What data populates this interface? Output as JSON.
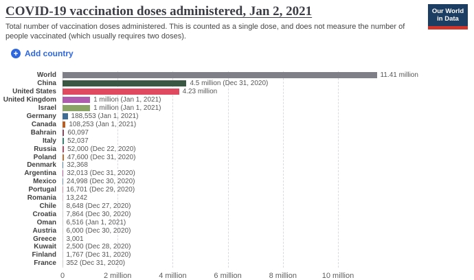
{
  "header": {
    "title": "COVID-19 vaccination doses administered, Jan 2, 2021",
    "subtitle": "Total number of vaccination doses administered. This is counted as a single dose, and does not measure the number of people vaccinated (which usually requires two doses).",
    "logo": {
      "line1": "Our World",
      "line2": "in Data",
      "bg_color": "#1d3e63",
      "accent_color": "#cf352b"
    }
  },
  "controls": {
    "add_country_label": "Add country",
    "accent_color": "#2d66dd"
  },
  "chart_data": {
    "type": "bar",
    "orientation": "horizontal",
    "title": "COVID-19 vaccination doses administered, Jan 2, 2021",
    "xlabel": "",
    "ylabel": "",
    "xlim": [
      0,
      12000000
    ],
    "grid": "dashed-vertical",
    "x_ticks": [
      {
        "label": "0",
        "value": 0
      },
      {
        "label": "2 million",
        "value": 2000000
      },
      {
        "label": "4 million",
        "value": 4000000
      },
      {
        "label": "6 million",
        "value": 6000000
      },
      {
        "label": "8 million",
        "value": 8000000
      },
      {
        "label": "10 million",
        "value": 10000000
      }
    ],
    "bars": [
      {
        "country": "World",
        "value": 11410000,
        "label": "11.41 million",
        "color": "#7f7f87"
      },
      {
        "country": "China",
        "value": 4500000,
        "label": "4.5 million (Dec 31, 2020)",
        "color": "#3a5743"
      },
      {
        "country": "United States",
        "value": 4230000,
        "label": "4.23 million",
        "color": "#df4a60"
      },
      {
        "country": "United Kingdom",
        "value": 1000000,
        "label": "1 million (Jan 1, 2021)",
        "color": "#ae5cae"
      },
      {
        "country": "Israel",
        "value": 1000000,
        "label": "1 million (Jan 1, 2021)",
        "color": "#89a465"
      },
      {
        "country": "Germany",
        "value": 188553,
        "label": "188,553 (Jan 1, 2021)",
        "color": "#3e6c95"
      },
      {
        "country": "Canada",
        "value": 108253,
        "label": "108,253 (Jan 1, 2021)",
        "color": "#bf5b1d"
      },
      {
        "country": "Bahrain",
        "value": 60097,
        "label": "60,097",
        "color": "#91425a"
      },
      {
        "country": "Italy",
        "value": 52037,
        "label": "52,037",
        "color": "#2d8571"
      },
      {
        "country": "Russia",
        "value": 52000,
        "label": "52,000 (Dec 22, 2020)",
        "color": "#bb4862"
      },
      {
        "country": "Poland",
        "value": 47600,
        "label": "47,600 (Dec 31, 2020)",
        "color": "#bf6b2d"
      },
      {
        "country": "Denmark",
        "value": 32368,
        "label": "32,368",
        "color": "#4e7fae"
      },
      {
        "country": "Argentina",
        "value": 32013,
        "label": "32,013 (Dec 31, 2020)",
        "color": "#c3529c"
      },
      {
        "country": "Mexico",
        "value": 24998,
        "label": "24,998 (Dec 30, 2020)",
        "color": "#6b8cb8"
      },
      {
        "country": "Portugal",
        "value": 16701,
        "label": "16,701 (Dec 29, 2020)",
        "color": "#d98a9f"
      },
      {
        "country": "Romania",
        "value": 13242,
        "label": "13,242",
        "color": "#dcb6c0"
      },
      {
        "country": "Chile",
        "value": 8648,
        "label": "8,648 (Dec 27, 2020)",
        "color": "#cccccc"
      },
      {
        "country": "Croatia",
        "value": 7864,
        "label": "7,864 (Dec 30, 2020)",
        "color": "#cccccc"
      },
      {
        "country": "Oman",
        "value": 6516,
        "label": "6,516 (Jan 1, 2021)",
        "color": "#cccccc"
      },
      {
        "country": "Austria",
        "value": 6000,
        "label": "6,000 (Dec 30, 2020)",
        "color": "#cccccc"
      },
      {
        "country": "Greece",
        "value": 3001,
        "label": "3,001",
        "color": "#cccccc"
      },
      {
        "country": "Kuwait",
        "value": 2500,
        "label": "2,500 (Dec 28, 2020)",
        "color": "#cccccc"
      },
      {
        "country": "Finland",
        "value": 1767,
        "label": "1,767 (Dec 31, 2020)",
        "color": "#cccccc"
      },
      {
        "country": "France",
        "value": 352,
        "label": "352 (Dec 31, 2020)",
        "color": "#cccccc"
      }
    ]
  }
}
